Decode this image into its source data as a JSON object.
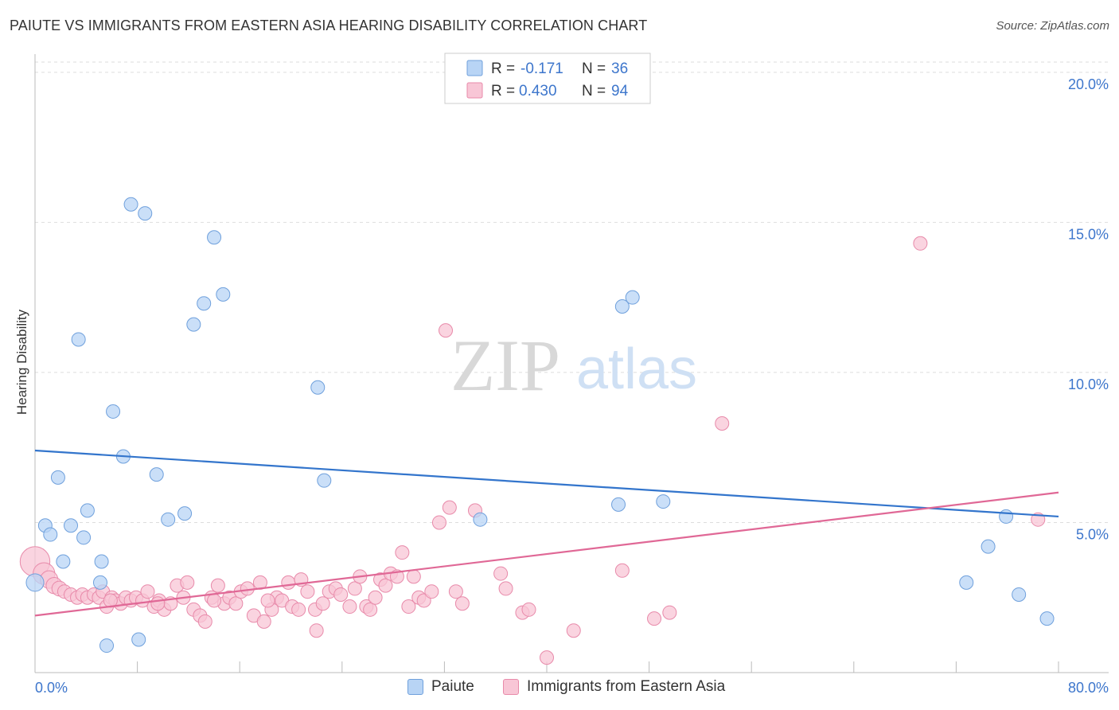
{
  "header": {
    "title": "PAIUTE VS IMMIGRANTS FROM EASTERN ASIA HEARING DISABILITY CORRELATION CHART",
    "source": "Source: ZipAtlas.com"
  },
  "watermark": {
    "zip": "ZIP",
    "atlas": "atlas"
  },
  "legend_bottom": {
    "paiute": "Paiute",
    "immigrants": "Immigrants from Eastern Asia"
  },
  "colors": {
    "paiute_fill": "#b8d4f5",
    "paiute_stroke": "#6fa0dc",
    "paiute_line": "#3375cc",
    "imm_fill": "#f8c6d6",
    "imm_stroke": "#e88aaa",
    "imm_line": "#e06896",
    "axis_value": "#3d76cc"
  },
  "chart_data": {
    "type": "scatter",
    "title": "PAIUTE VS IMMIGRANTS FROM EASTERN ASIA HEARING DISABILITY CORRELATION CHART",
    "xlabel": "",
    "ylabel": "Hearing Disability",
    "xlim": [
      0,
      80
    ],
    "ylim": [
      0,
      20.5
    ],
    "x_tick_labels": {
      "min": "0.0%",
      "max": "80.0%"
    },
    "y_ticks": [
      {
        "value": 5,
        "label": "5.0%"
      },
      {
        "value": 10,
        "label": "10.0%"
      },
      {
        "value": 15,
        "label": "15.0%"
      },
      {
        "value": 20,
        "label": "20.0%"
      }
    ],
    "x_minor_ticks": [
      8,
      16,
      24,
      32,
      40,
      48,
      56,
      64,
      72,
      80
    ],
    "legend": [
      {
        "series": "Paiute",
        "r_label": "R = ",
        "r_value": "-0.171",
        "n_label": "N = ",
        "n_value": "36"
      },
      {
        "series": "Immigrants from Eastern Asia",
        "r_label": "R = ",
        "r_value": "0.430",
        "n_label": "N = ",
        "n_value": "94"
      }
    ],
    "series": [
      {
        "name": "Paiute",
        "trend": {
          "x0": 0,
          "y0": 7.4,
          "x1": 80,
          "y1": 5.2
        },
        "points": [
          [
            0.0,
            3.0,
            1.3
          ],
          [
            0.8,
            4.9,
            1
          ],
          [
            1.2,
            4.6,
            1
          ],
          [
            1.8,
            6.5,
            1
          ],
          [
            2.2,
            3.7,
            1
          ],
          [
            2.8,
            4.9,
            1
          ],
          [
            3.4,
            11.1,
            1
          ],
          [
            3.8,
            4.5,
            1
          ],
          [
            4.1,
            5.4,
            1
          ],
          [
            5.1,
            3.0,
            1
          ],
          [
            5.2,
            3.7,
            1
          ],
          [
            5.6,
            0.9,
            1
          ],
          [
            6.1,
            8.7,
            1
          ],
          [
            6.9,
            7.2,
            1
          ],
          [
            7.5,
            15.6,
            1
          ],
          [
            8.1,
            1.1,
            1
          ],
          [
            8.6,
            15.3,
            1
          ],
          [
            9.5,
            6.6,
            1
          ],
          [
            10.4,
            5.1,
            1
          ],
          [
            11.7,
            5.3,
            1
          ],
          [
            12.4,
            11.6,
            1
          ],
          [
            13.2,
            12.3,
            1
          ],
          [
            14.0,
            14.5,
            1
          ],
          [
            14.7,
            12.6,
            1
          ],
          [
            22.1,
            9.5,
            1
          ],
          [
            22.6,
            6.4,
            1
          ],
          [
            34.8,
            5.1,
            1
          ],
          [
            45.6,
            5.6,
            1
          ],
          [
            45.9,
            12.2,
            1
          ],
          [
            46.7,
            12.5,
            1
          ],
          [
            49.1,
            5.7,
            1
          ],
          [
            72.8,
            3.0,
            1
          ],
          [
            74.5,
            4.2,
            1
          ],
          [
            75.9,
            5.2,
            1
          ],
          [
            76.9,
            2.6,
            1
          ],
          [
            79.1,
            1.8,
            1
          ]
        ]
      },
      {
        "name": "Immigrants from Eastern Asia",
        "trend": {
          "x0": 0,
          "y0": 1.9,
          "x1": 80,
          "y1": 6.0
        },
        "points": [
          [
            0.0,
            3.7,
            2.2
          ],
          [
            0.7,
            3.3,
            1.6
          ],
          [
            1.1,
            3.1,
            1.3
          ],
          [
            1.5,
            2.9,
            1.2
          ],
          [
            1.9,
            2.8,
            1.1
          ],
          [
            2.3,
            2.7,
            1
          ],
          [
            2.8,
            2.6,
            1
          ],
          [
            3.3,
            2.5,
            1
          ],
          [
            3.7,
            2.6,
            1
          ],
          [
            4.1,
            2.5,
            1
          ],
          [
            4.6,
            2.6,
            1
          ],
          [
            5.0,
            2.5,
            1
          ],
          [
            5.3,
            2.7,
            1
          ],
          [
            5.6,
            2.2,
            1
          ],
          [
            6.0,
            2.5,
            1
          ],
          [
            6.3,
            2.4,
            1
          ],
          [
            6.7,
            2.3,
            1
          ],
          [
            7.1,
            2.5,
            1
          ],
          [
            7.5,
            2.4,
            1
          ],
          [
            7.9,
            2.5,
            1
          ],
          [
            8.4,
            2.4,
            1
          ],
          [
            8.8,
            2.7,
            1
          ],
          [
            9.3,
            2.2,
            1
          ],
          [
            9.7,
            2.4,
            1
          ],
          [
            10.1,
            2.1,
            1
          ],
          [
            10.6,
            2.3,
            1
          ],
          [
            11.1,
            2.9,
            1
          ],
          [
            11.6,
            2.5,
            1
          ],
          [
            11.9,
            3.0,
            1
          ],
          [
            12.4,
            2.1,
            1
          ],
          [
            12.9,
            1.9,
            1
          ],
          [
            13.3,
            1.7,
            1
          ],
          [
            13.8,
            2.5,
            1
          ],
          [
            14.3,
            2.9,
            1
          ],
          [
            14.8,
            2.3,
            1
          ],
          [
            15.2,
            2.5,
            1
          ],
          [
            15.7,
            2.3,
            1
          ],
          [
            16.1,
            2.7,
            1
          ],
          [
            16.6,
            2.8,
            1
          ],
          [
            17.1,
            1.9,
            1
          ],
          [
            17.6,
            3.0,
            1
          ],
          [
            17.9,
            1.7,
            1
          ],
          [
            18.5,
            2.1,
            1
          ],
          [
            18.9,
            2.5,
            1
          ],
          [
            19.3,
            2.4,
            1
          ],
          [
            19.8,
            3.0,
            1
          ],
          [
            20.1,
            2.2,
            1
          ],
          [
            20.6,
            2.1,
            1
          ],
          [
            20.8,
            3.1,
            1
          ],
          [
            21.3,
            2.7,
            1
          ],
          [
            21.9,
            2.1,
            1
          ],
          [
            22.0,
            1.4,
            1
          ],
          [
            22.5,
            2.3,
            1
          ],
          [
            23.0,
            2.7,
            1
          ],
          [
            23.5,
            2.8,
            1
          ],
          [
            23.9,
            2.6,
            1
          ],
          [
            24.6,
            2.2,
            1
          ],
          [
            25.0,
            2.8,
            1
          ],
          [
            25.4,
            3.2,
            1
          ],
          [
            25.9,
            2.2,
            1
          ],
          [
            26.2,
            2.1,
            1
          ],
          [
            27.0,
            3.1,
            1
          ],
          [
            27.4,
            2.9,
            1
          ],
          [
            27.8,
            3.3,
            1
          ],
          [
            28.3,
            3.2,
            1
          ],
          [
            28.7,
            4.0,
            1
          ],
          [
            29.2,
            2.2,
            1
          ],
          [
            29.6,
            3.2,
            1
          ],
          [
            30.0,
            2.5,
            1
          ],
          [
            30.4,
            2.4,
            1
          ],
          [
            31.0,
            2.7,
            1
          ],
          [
            31.6,
            5.0,
            1
          ],
          [
            32.1,
            11.4,
            1
          ],
          [
            32.4,
            5.5,
            1
          ],
          [
            32.9,
            2.7,
            1
          ],
          [
            33.4,
            2.3,
            1
          ],
          [
            34.4,
            5.4,
            1
          ],
          [
            36.4,
            3.3,
            1
          ],
          [
            36.8,
            2.8,
            1
          ],
          [
            38.1,
            2.0,
            1
          ],
          [
            38.6,
            2.1,
            1
          ],
          [
            40.0,
            0.5,
            1
          ],
          [
            42.1,
            1.4,
            1
          ],
          [
            45.9,
            3.4,
            1
          ],
          [
            48.4,
            1.8,
            1
          ],
          [
            49.6,
            2.0,
            1
          ],
          [
            53.7,
            8.3,
            1
          ],
          [
            69.2,
            14.3,
            1
          ],
          [
            78.4,
            5.1,
            1
          ],
          [
            5.9,
            2.4,
            1
          ],
          [
            9.6,
            2.3,
            1
          ],
          [
            14.0,
            2.4,
            1
          ],
          [
            18.2,
            2.4,
            1
          ],
          [
            26.6,
            2.5,
            1
          ]
        ]
      }
    ]
  }
}
